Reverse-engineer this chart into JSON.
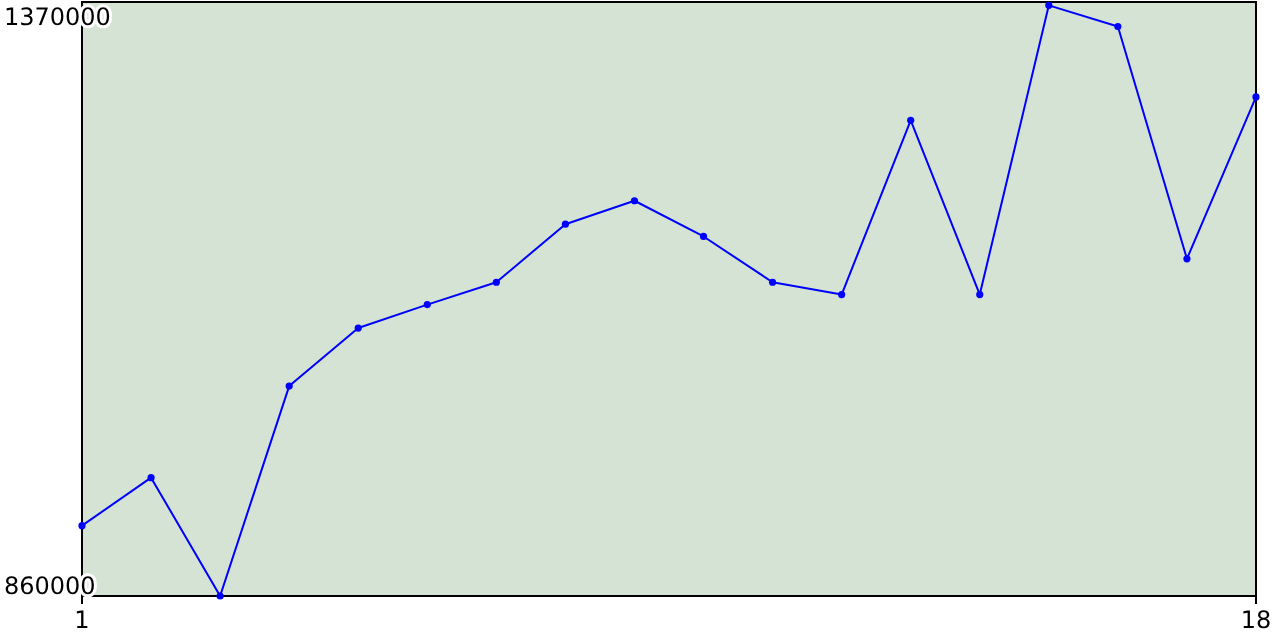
{
  "chart_data": {
    "type": "line",
    "x": [
      1,
      2,
      3,
      4,
      5,
      6,
      7,
      8,
      9,
      10,
      11,
      12,
      13,
      14,
      15,
      16,
      17,
      18
    ],
    "series": [
      {
        "color": "#0000ff",
        "values": [
          914000,
          957000,
          851000,
          1039000,
          1091000,
          1112000,
          1132000,
          1184000,
          1205000,
          1173000,
          1132000,
          1121000,
          1277000,
          1121000,
          1380000,
          1361000,
          1153000,
          1298000
        ]
      }
    ],
    "xlim": [
      1,
      18
    ],
    "ylim": [
      851000,
      1383000
    ],
    "xticks": [
      1,
      18
    ],
    "yticks": [
      860000,
      1370000
    ],
    "grid": false,
    "marker": "circle",
    "line_style": "solid"
  }
}
